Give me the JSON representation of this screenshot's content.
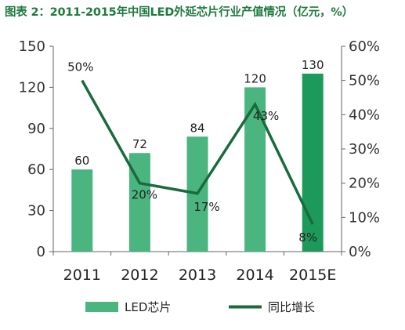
{
  "title": "图表 2：2011-2015年中国LED外延芯片行业产值情况（亿元，%）",
  "chart_data": {
    "type": "bar",
    "categories": [
      "2011",
      "2012",
      "2013",
      "2014",
      "2015E"
    ],
    "series": [
      {
        "name": "LED芯片",
        "type": "bar",
        "axis": "left",
        "values": [
          60,
          72,
          84,
          120,
          130
        ],
        "labels": [
          "60",
          "72",
          "84",
          "120",
          "130"
        ]
      },
      {
        "name": "同比增长",
        "type": "line",
        "axis": "right",
        "values": [
          50,
          20,
          17,
          43,
          8
        ],
        "labels": [
          "50%",
          "20%",
          "17%",
          "43%",
          "8%"
        ]
      }
    ],
    "left_axis": {
      "ylim": [
        0,
        150
      ],
      "ticks": [
        0,
        30,
        60,
        90,
        120,
        150
      ],
      "tick_labels": [
        "0",
        "30",
        "60",
        "90",
        "120",
        "150"
      ]
    },
    "right_axis": {
      "ylim": [
        0,
        60
      ],
      "ticks": [
        0,
        10,
        20,
        30,
        40,
        50,
        60
      ],
      "tick_labels": [
        "0%",
        "10%",
        "20%",
        "30%",
        "40%",
        "50%",
        "60%"
      ]
    },
    "grid": false,
    "legend": "bottom",
    "colors": {
      "bar": "#4bb580",
      "bar_highlight": "#1d9a5a",
      "line": "#1a6b3c",
      "title": "#1f7a40"
    }
  }
}
